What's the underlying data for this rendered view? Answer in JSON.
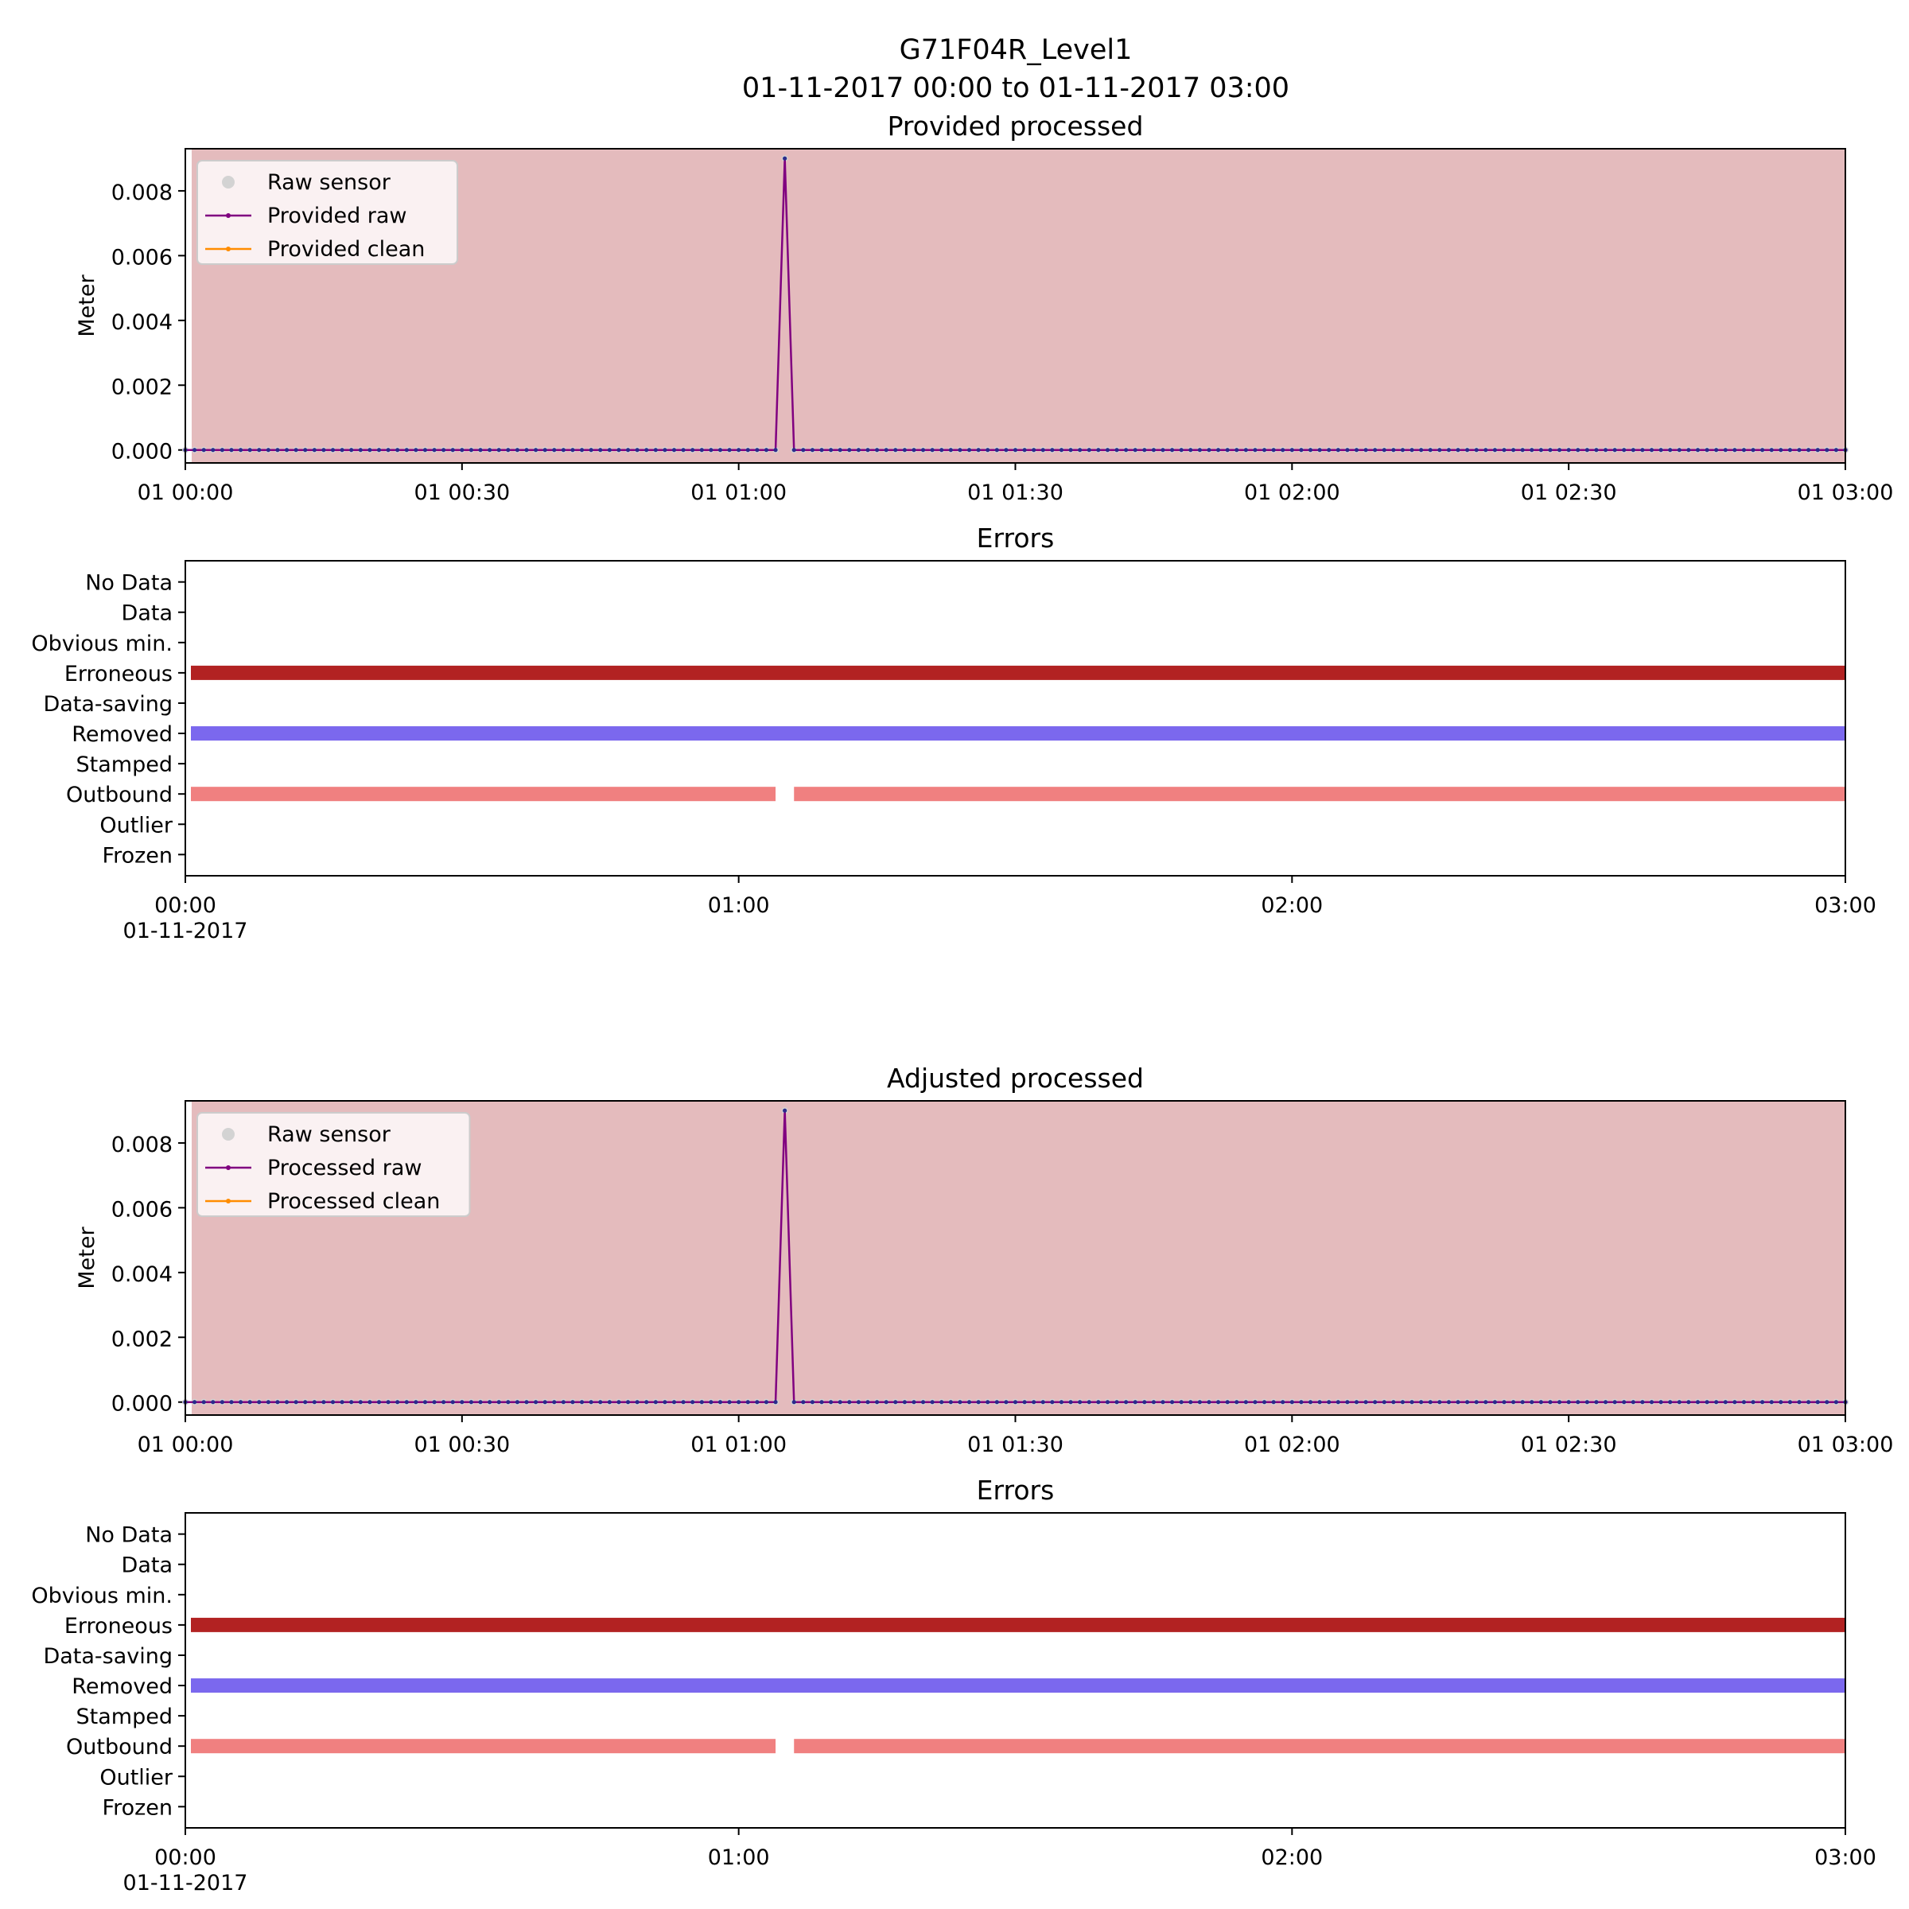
{
  "figure": {
    "title": "G71F04R_Level1",
    "subtitle": "01-11-2017 00:00 to 01-11-2017 03:00"
  },
  "colors": {
    "shade": "#e4bbbd",
    "raw_sensor": "#d3d3d3",
    "raw_line": "#800080",
    "clean_line": "#ff8c00",
    "marker": "#2b2b8c",
    "erroneous": "#b22222",
    "removed": "#7b68ee",
    "outbound": "#f08080"
  },
  "chart_data": [
    {
      "type": "line",
      "title": "Provided processed",
      "ylabel": "Meter",
      "xlim": [
        "01-11-2017 00:00",
        "01-11-2017 03:00"
      ],
      "ylim": [
        -0.0004,
        0.0093
      ],
      "x_tick_labels": [
        "01 00:00",
        "01 00:30",
        "01 01:00",
        "01 01:30",
        "01 02:00",
        "01 02:30",
        "01 03:00"
      ],
      "y_tick_labels": [
        "0.000",
        "0.002",
        "0.004",
        "0.006",
        "0.008"
      ],
      "y_ticks": [
        0,
        0.002,
        0.004,
        0.006,
        0.008
      ],
      "sampling_interval_minutes": 1,
      "background": "shaded",
      "legend_position": "upper-left",
      "legend": [
        "Raw sensor",
        "Provided raw",
        "Provided clean"
      ],
      "series": [
        {
          "name": "Raw sensor",
          "baseline": 0,
          "peaks": [
            {
              "x": "01-11-2017 01:05",
              "y": 0.009
            }
          ]
        },
        {
          "name": "Provided raw",
          "baseline": 0,
          "peaks": [
            {
              "x": "01-11-2017 01:05",
              "y": 0.009
            }
          ]
        },
        {
          "name": "Provided clean",
          "baseline": 0,
          "peaks": []
        }
      ]
    },
    {
      "type": "timeline",
      "title": "Errors",
      "xlim": [
        "01-11-2017 00:00",
        "01-11-2017 03:00"
      ],
      "x_tick_labels": [
        "00:00",
        "01:00",
        "02:00",
        "03:00"
      ],
      "x_tick_sublabel": "01-11-2017",
      "categories": [
        "No Data",
        "Data",
        "Obvious min.",
        "Erroneous",
        "Data-saving",
        "Removed",
        "Stamped",
        "Outbound",
        "Outlier",
        "Frozen"
      ],
      "bars": [
        {
          "category": "Erroneous",
          "segments": [
            [
              "01-11-2017 00:00",
              "01-11-2017 03:00"
            ]
          ]
        },
        {
          "category": "Removed",
          "segments": [
            [
              "01-11-2017 00:00",
              "01-11-2017 03:00"
            ]
          ]
        },
        {
          "category": "Outbound",
          "segments": [
            [
              "01-11-2017 00:00",
              "01-11-2017 01:04"
            ],
            [
              "01-11-2017 01:06",
              "01-11-2017 03:00"
            ]
          ]
        }
      ]
    },
    {
      "type": "line",
      "title": "Adjusted processed",
      "ylabel": "Meter",
      "xlim": [
        "01-11-2017 00:00",
        "01-11-2017 03:00"
      ],
      "ylim": [
        -0.0004,
        0.0093
      ],
      "x_tick_labels": [
        "01 00:00",
        "01 00:30",
        "01 01:00",
        "01 01:30",
        "01 02:00",
        "01 02:30",
        "01 03:00"
      ],
      "y_tick_labels": [
        "0.000",
        "0.002",
        "0.004",
        "0.006",
        "0.008"
      ],
      "y_ticks": [
        0,
        0.002,
        0.004,
        0.006,
        0.008
      ],
      "sampling_interval_minutes": 1,
      "background": "shaded",
      "legend_position": "upper-left",
      "legend": [
        "Raw sensor",
        "Processed raw",
        "Processed clean"
      ],
      "series": [
        {
          "name": "Raw sensor",
          "baseline": 0,
          "peaks": [
            {
              "x": "01-11-2017 01:05",
              "y": 0.009
            }
          ]
        },
        {
          "name": "Processed raw",
          "baseline": 0,
          "peaks": [
            {
              "x": "01-11-2017 01:05",
              "y": 0.009
            }
          ]
        },
        {
          "name": "Processed clean",
          "baseline": 0,
          "peaks": []
        }
      ]
    },
    {
      "type": "timeline",
      "title": "Errors",
      "xlim": [
        "01-11-2017 00:00",
        "01-11-2017 03:00"
      ],
      "x_tick_labels": [
        "00:00",
        "01:00",
        "02:00",
        "03:00"
      ],
      "x_tick_sublabel": "01-11-2017",
      "categories": [
        "No Data",
        "Data",
        "Obvious min.",
        "Erroneous",
        "Data-saving",
        "Removed",
        "Stamped",
        "Outbound",
        "Outlier",
        "Frozen"
      ],
      "bars": [
        {
          "category": "Erroneous",
          "segments": [
            [
              "01-11-2017 00:00",
              "01-11-2017 03:00"
            ]
          ]
        },
        {
          "category": "Removed",
          "segments": [
            [
              "01-11-2017 00:00",
              "01-11-2017 03:00"
            ]
          ]
        },
        {
          "category": "Outbound",
          "segments": [
            [
              "01-11-2017 00:00",
              "01-11-2017 01:04"
            ],
            [
              "01-11-2017 01:06",
              "01-11-2017 03:00"
            ]
          ]
        }
      ]
    }
  ]
}
